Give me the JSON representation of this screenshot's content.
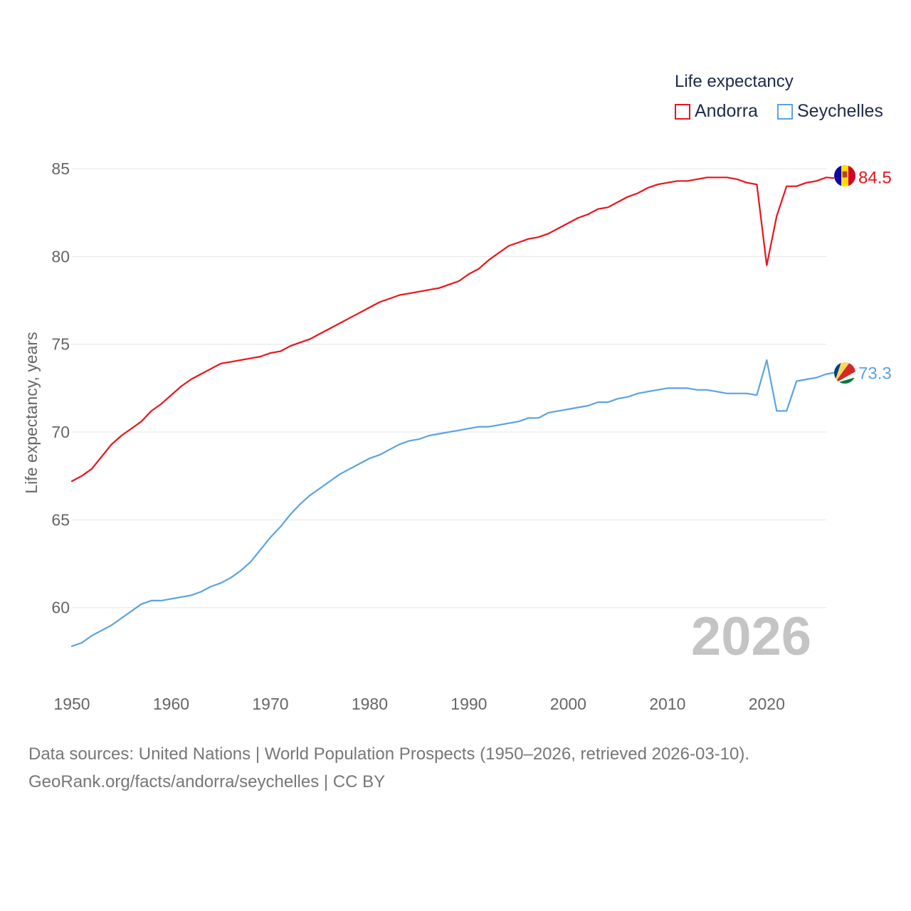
{
  "legend": {
    "title": "Life expectancy"
  },
  "colors": {
    "andorra": "#e8141b",
    "seychelles": "#5aa3e3",
    "grid": "#e6e6e6",
    "axis_text": "#666666",
    "year_watermark": "#c4c4c4"
  },
  "year_label": "2026",
  "footer": {
    "line1": "Data sources: United Nations | World Population Prospects (1950–2026, retrieved 2026-03-10).",
    "line2": "GeoRank.org/facts/andorra/seychelles | CC BY"
  },
  "chart_data": {
    "type": "line",
    "title": "Life expectancy",
    "xlabel": "",
    "ylabel": "Life expectancy, years",
    "xlim": [
      1950,
      2026
    ],
    "ylim": [
      57.8,
      85
    ],
    "x_ticks": [
      "1950",
      "1960",
      "1970",
      "1980",
      "1990",
      "2000",
      "2010",
      "2020"
    ],
    "y_ticks": [
      "60",
      "65",
      "70",
      "75",
      "80",
      "85"
    ],
    "grid": true,
    "legend_position": "top-right",
    "series": [
      {
        "name": "Andorra",
        "color_key": "andorra",
        "end_label": "84.5",
        "flag": "andorra-flag-icon",
        "x": [
          1950,
          1951,
          1952,
          1953,
          1954,
          1955,
          1956,
          1957,
          1958,
          1959,
          1960,
          1961,
          1962,
          1963,
          1964,
          1965,
          1966,
          1967,
          1968,
          1969,
          1970,
          1971,
          1972,
          1973,
          1974,
          1975,
          1976,
          1977,
          1978,
          1979,
          1980,
          1981,
          1982,
          1983,
          1984,
          1985,
          1986,
          1987,
          1988,
          1989,
          1990,
          1991,
          1992,
          1993,
          1994,
          1995,
          1996,
          1997,
          1998,
          1999,
          2000,
          2001,
          2002,
          2003,
          2004,
          2005,
          2006,
          2007,
          2008,
          2009,
          2010,
          2011,
          2012,
          2013,
          2014,
          2015,
          2016,
          2017,
          2018,
          2019,
          2020,
          2021,
          2022,
          2023,
          2024,
          2025,
          2026
        ],
        "values": [
          67.2,
          67.5,
          67.9,
          68.6,
          69.3,
          69.8,
          70.2,
          70.6,
          71.2,
          71.6,
          72.1,
          72.6,
          73.0,
          73.3,
          73.6,
          73.9,
          74.0,
          74.1,
          74.2,
          74.3,
          74.5,
          74.6,
          74.9,
          75.1,
          75.3,
          75.6,
          75.9,
          76.2,
          76.5,
          76.8,
          77.1,
          77.4,
          77.6,
          77.8,
          77.9,
          78.0,
          78.1,
          78.2,
          78.4,
          78.6,
          79.0,
          79.3,
          79.8,
          80.2,
          80.6,
          80.8,
          81.0,
          81.1,
          81.3,
          81.6,
          81.9,
          82.2,
          82.4,
          82.7,
          82.8,
          83.1,
          83.4,
          83.6,
          83.9,
          84.1,
          84.2,
          84.3,
          84.3,
          84.4,
          84.5,
          84.5,
          84.5,
          84.4,
          84.2,
          84.1,
          79.5,
          82.3,
          84.0,
          84.0,
          84.2,
          84.3,
          84.5
        ]
      },
      {
        "name": "Seychelles",
        "color_key": "seychelles",
        "end_label": "73.3",
        "flag": "seychelles-flag-icon",
        "x": [
          1950,
          1951,
          1952,
          1953,
          1954,
          1955,
          1956,
          1957,
          1958,
          1959,
          1960,
          1961,
          1962,
          1963,
          1964,
          1965,
          1966,
          1967,
          1968,
          1969,
          1970,
          1971,
          1972,
          1973,
          1974,
          1975,
          1976,
          1977,
          1978,
          1979,
          1980,
          1981,
          1982,
          1983,
          1984,
          1985,
          1986,
          1987,
          1988,
          1989,
          1990,
          1991,
          1992,
          1993,
          1994,
          1995,
          1996,
          1997,
          1998,
          1999,
          2000,
          2001,
          2002,
          2003,
          2004,
          2005,
          2006,
          2007,
          2008,
          2009,
          2010,
          2011,
          2012,
          2013,
          2014,
          2015,
          2016,
          2017,
          2018,
          2019,
          2020,
          2021,
          2022,
          2023,
          2024,
          2025,
          2026
        ],
        "values": [
          57.8,
          58.0,
          58.4,
          58.7,
          59.0,
          59.4,
          59.8,
          60.2,
          60.4,
          60.4,
          60.5,
          60.6,
          60.7,
          60.9,
          61.2,
          61.4,
          61.7,
          62.1,
          62.6,
          63.3,
          64.0,
          64.6,
          65.3,
          65.9,
          66.4,
          66.8,
          67.2,
          67.6,
          67.9,
          68.2,
          68.5,
          68.7,
          69.0,
          69.3,
          69.5,
          69.6,
          69.8,
          69.9,
          70.0,
          70.1,
          70.2,
          70.3,
          70.3,
          70.4,
          70.5,
          70.6,
          70.8,
          70.8,
          71.1,
          71.2,
          71.3,
          71.4,
          71.5,
          71.7,
          71.7,
          71.9,
          72.0,
          72.2,
          72.3,
          72.4,
          72.5,
          72.5,
          72.5,
          72.4,
          72.4,
          72.3,
          72.2,
          72.2,
          72.2,
          72.1,
          74.1,
          71.2,
          71.2,
          72.9,
          73.0,
          73.1,
          73.3
        ]
      }
    ]
  }
}
